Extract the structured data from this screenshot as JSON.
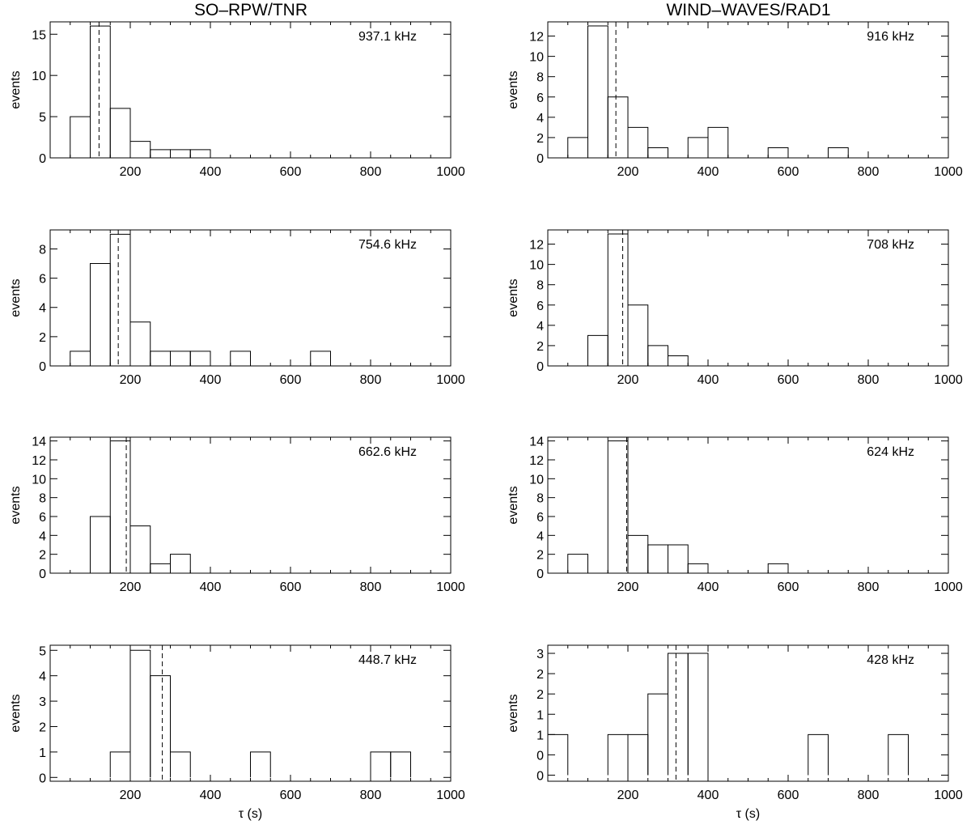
{
  "columns": [
    "SO–RPW/TNR",
    "WIND–WAVES/RAD1"
  ],
  "chart_data": [
    {
      "type": "bar",
      "column": "SO–RPW/TNR",
      "annotation": "937.1 kHz",
      "ylabel": "events",
      "xlabel": "",
      "xlim": [
        0,
        1000
      ],
      "ylim": [
        0,
        16.5
      ],
      "yticks": [
        0,
        5,
        10,
        15
      ],
      "xticks": [
        200,
        400,
        600,
        800,
        1000
      ],
      "bin_width": 50,
      "bin_starts": [
        50,
        100,
        150,
        200,
        250,
        300,
        350
      ],
      "values": [
        5,
        16,
        6,
        2,
        1,
        1,
        1
      ],
      "dashed_line_x": 122
    },
    {
      "type": "bar",
      "column": "WIND–WAVES/RAD1",
      "annotation": "916 kHz",
      "ylabel": "events",
      "xlabel": "",
      "xlim": [
        0,
        1000
      ],
      "ylim": [
        0,
        13.4
      ],
      "yticks": [
        0,
        2,
        4,
        6,
        8,
        10,
        12
      ],
      "xticks": [
        200,
        400,
        600,
        800,
        1000
      ],
      "bin_width": 50,
      "bin_starts": [
        50,
        100,
        150,
        200,
        250,
        350,
        400,
        550,
        700
      ],
      "values": [
        2,
        13,
        6,
        3,
        1,
        2,
        3,
        1,
        1
      ],
      "dashed_line_x": 170
    },
    {
      "type": "bar",
      "column": "SO–RPW/TNR",
      "annotation": "754.6 kHz",
      "ylabel": "events",
      "xlabel": "",
      "xlim": [
        0,
        1000
      ],
      "ylim": [
        0,
        9.3
      ],
      "yticks": [
        0,
        2,
        4,
        6,
        8
      ],
      "xticks": [
        200,
        400,
        600,
        800,
        1000
      ],
      "bin_width": 50,
      "bin_starts": [
        50,
        100,
        150,
        200,
        250,
        300,
        350,
        450,
        650
      ],
      "values": [
        1,
        7,
        9,
        3,
        1,
        1,
        1,
        1,
        1
      ],
      "dashed_line_x": 170
    },
    {
      "type": "bar",
      "column": "WIND–WAVES/RAD1",
      "annotation": "708 kHz",
      "ylabel": "events",
      "xlabel": "",
      "xlim": [
        0,
        1000
      ],
      "ylim": [
        0,
        13.4
      ],
      "yticks": [
        0,
        2,
        4,
        6,
        8,
        10,
        12
      ],
      "xticks": [
        200,
        400,
        600,
        800,
        1000
      ],
      "bin_width": 50,
      "bin_starts": [
        100,
        150,
        200,
        250,
        300
      ],
      "values": [
        3,
        13,
        6,
        2,
        1
      ],
      "dashed_line_x": 187
    },
    {
      "type": "bar",
      "column": "SO–RPW/TNR",
      "annotation": "662.6 kHz",
      "ylabel": "events",
      "xlabel": "",
      "xlim": [
        0,
        1000
      ],
      "ylim": [
        0,
        14.4
      ],
      "yticks": [
        0,
        2,
        4,
        6,
        8,
        10,
        12,
        14
      ],
      "xticks": [
        200,
        400,
        600,
        800,
        1000
      ],
      "bin_width": 50,
      "bin_starts": [
        100,
        150,
        200,
        250,
        300
      ],
      "values": [
        6,
        14,
        5,
        1,
        2
      ],
      "dashed_line_x": 190
    },
    {
      "type": "bar",
      "column": "WIND–WAVES/RAD1",
      "annotation": "624 kHz",
      "ylabel": "events",
      "xlabel": "",
      "xlim": [
        0,
        1000
      ],
      "ylim": [
        0,
        14.4
      ],
      "yticks": [
        0,
        2,
        4,
        6,
        8,
        10,
        12,
        14
      ],
      "xticks": [
        200,
        400,
        600,
        800,
        1000
      ],
      "bin_width": 50,
      "bin_starts": [
        50,
        150,
        200,
        250,
        300,
        350,
        550
      ],
      "values": [
        2,
        14,
        4,
        3,
        3,
        1,
        1
      ],
      "dashed_line_x": 197
    },
    {
      "type": "bar",
      "column": "SO–RPW/TNR",
      "annotation": "448.7 kHz",
      "ylabel": "events",
      "xlabel": "τ (s)",
      "xlim": [
        0,
        1000
      ],
      "ylim": [
        -0.15,
        5.2
      ],
      "yticks": [
        0,
        1,
        2,
        3,
        4,
        5
      ],
      "ytick_labels": [
        "0",
        "1",
        "2",
        "3",
        "4",
        "5"
      ],
      "xticks": [
        200,
        400,
        600,
        800,
        1000
      ],
      "bin_width": 50,
      "bin_starts": [
        150,
        200,
        250,
        300,
        500,
        800,
        850
      ],
      "values": [
        1,
        5,
        4,
        1,
        1,
        1,
        1
      ],
      "dashed_line_x": 280
    },
    {
      "type": "bar",
      "column": "WIND–WAVES/RAD1",
      "annotation": "428 kHz",
      "ylabel": "events",
      "xlabel": "τ (s)",
      "xlim": [
        0,
        1000
      ],
      "ylim": [
        -0.15,
        3.2
      ],
      "yticks": [
        0,
        0.5,
        1,
        1.5,
        2,
        2.5,
        3
      ],
      "ytick_labels": [
        "0",
        "0",
        "1",
        "1",
        "2",
        "2",
        "3"
      ],
      "xticks": [
        200,
        400,
        600,
        800,
        1000
      ],
      "bin_width": 50,
      "bin_starts": [
        0,
        150,
        200,
        250,
        300,
        350,
        650,
        850
      ],
      "values": [
        1,
        1,
        1,
        2,
        3,
        3,
        1,
        1
      ],
      "dashed_line_x": 320
    }
  ]
}
